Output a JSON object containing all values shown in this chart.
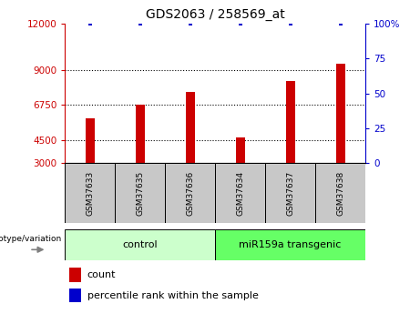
{
  "title": "GDS2063 / 258569_at",
  "categories": [
    "GSM37633",
    "GSM37635",
    "GSM37636",
    "GSM37634",
    "GSM37637",
    "GSM37638"
  ],
  "bar_values": [
    5900,
    6750,
    7600,
    4650,
    8300,
    9400
  ],
  "percentile_values": [
    100,
    100,
    100,
    100,
    100,
    100
  ],
  "bar_color": "#cc0000",
  "percentile_color": "#0000cc",
  "ylim_left": [
    3000,
    12000
  ],
  "ylim_right": [
    0,
    100
  ],
  "yticks_left": [
    3000,
    4500,
    6750,
    9000,
    12000
  ],
  "yticks_right": [
    0,
    25,
    50,
    75,
    100
  ],
  "ytick_labels_right": [
    "0",
    "25",
    "50",
    "75",
    "100%"
  ],
  "grid_dotted_values": [
    4500,
    6750,
    9000
  ],
  "group1_label": "control",
  "group2_label": "miR159a transgenic",
  "group1_indices": [
    0,
    1,
    2
  ],
  "group2_indices": [
    3,
    4,
    5
  ],
  "genotype_label": "genotype/variation",
  "legend_count_label": "count",
  "legend_percentile_label": "percentile rank within the sample",
  "group1_color": "#ccffcc",
  "group2_color": "#66ff66",
  "sample_box_color": "#c8c8c8",
  "left_axis_color": "#cc0000",
  "right_axis_color": "#0000cc",
  "bar_bottom": 3000,
  "bar_width": 0.18
}
